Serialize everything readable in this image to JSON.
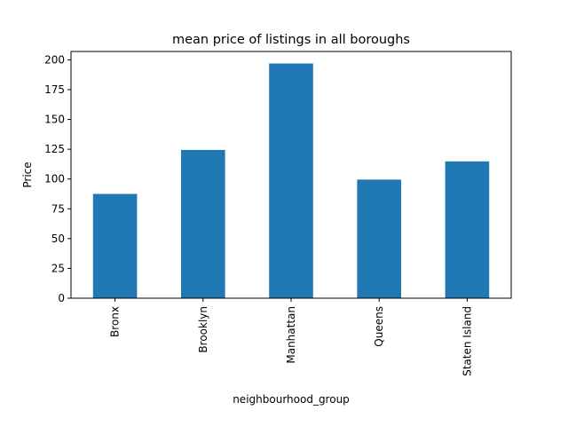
{
  "chart_data": {
    "type": "bar",
    "title": "mean price of listings in all boroughs",
    "xlabel": "neighbourhood_group",
    "ylabel": "Price",
    "categories": [
      "Bronx",
      "Brooklyn",
      "Manhattan",
      "Queens",
      "Staten Island"
    ],
    "values": [
      87.5,
      124.4,
      196.9,
      99.5,
      114.8
    ],
    "ylim": [
      0,
      207
    ],
    "yticks": [
      0,
      25,
      50,
      75,
      100,
      125,
      150,
      175,
      200
    ],
    "ytick_labels": [
      "0",
      "25",
      "50",
      "75",
      "100",
      "125",
      "150",
      "175",
      "200"
    ],
    "bar_color": "#1f77b4",
    "grid": false,
    "legend": "none"
  }
}
